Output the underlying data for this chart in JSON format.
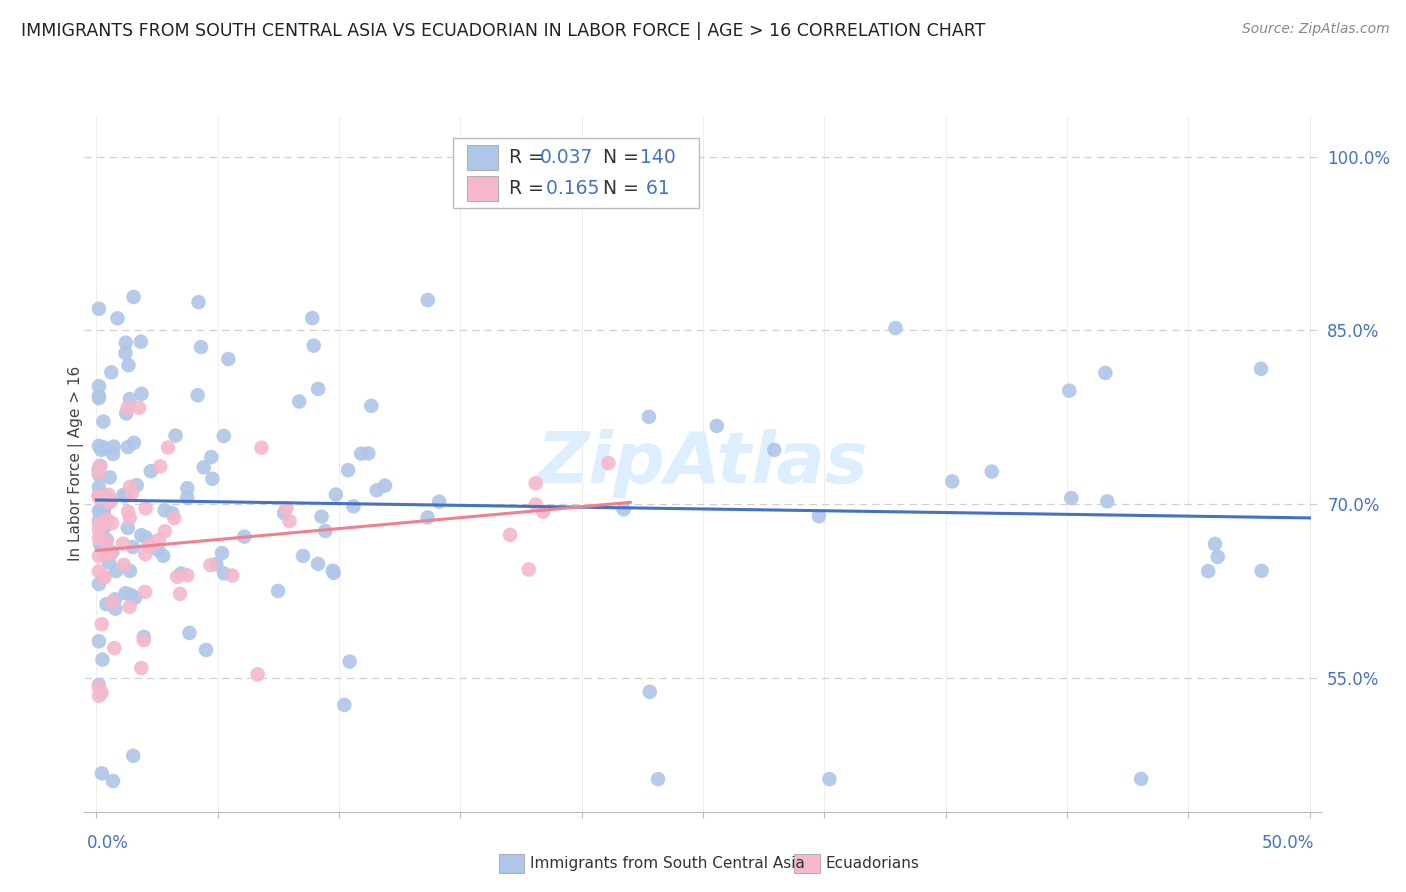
{
  "title": "IMMIGRANTS FROM SOUTH CENTRAL ASIA VS ECUADORIAN IN LABOR FORCE | AGE > 16 CORRELATION CHART",
  "source": "Source: ZipAtlas.com",
  "ylabel": "In Labor Force | Age > 16",
  "yaxis_labels": [
    "55.0%",
    "70.0%",
    "85.0%",
    "100.0%"
  ],
  "yaxis_values": [
    0.55,
    0.7,
    0.85,
    1.0
  ],
  "xlim": [
    -0.005,
    0.505
  ],
  "ylim": [
    0.435,
    1.035
  ],
  "legend_blue_r": "0.037",
  "legend_blue_n": "140",
  "legend_pink_r": "0.165",
  "legend_pink_n": "61",
  "blue_color": "#aec6e8",
  "pink_color": "#f5b8cb",
  "line_blue": "#4472c4",
  "line_pink": "#f08090",
  "axis_label_color": "#4472c4",
  "grid_color": "#d0d0d0",
  "background_color": "#ffffff",
  "watermark_color": "#ddeeff",
  "watermark_text": "ZipAtlas"
}
